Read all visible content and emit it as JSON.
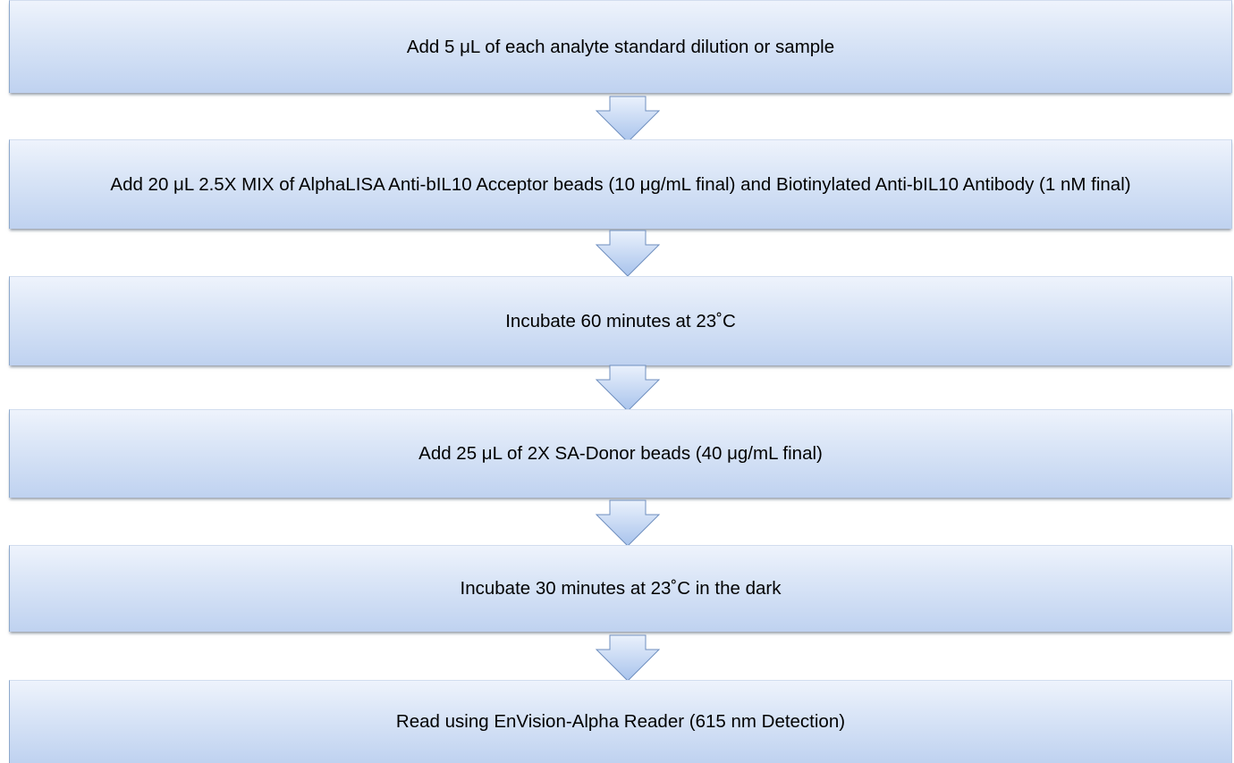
{
  "flowchart": {
    "steps": [
      "Add 5 μL of each analyte standard dilution or sample",
      "Add 20 μL 2.5X  MIX of AlphaLISA Anti-bIL10 Acceptor beads (10 μg/mL final) and Biotinylated Anti-bIL10 Antibody (1 nM final)",
      "Incubate 60 minutes at 23˚C",
      "Add 25 μL of 2X SA-Donor beads (40 μg/mL final)",
      "Incubate 30 minutes at 23˚C in the dark",
      "Read using EnVision-Alpha Reader (615 nm Detection)"
    ]
  },
  "colors": {
    "box_top": "#eef3fc",
    "box_bottom": "#bfd2f0",
    "box_border": "#8ea9cc",
    "arrow_top": "#eaf1fc",
    "arrow_bottom": "#a8c3ec",
    "arrow_stroke": "#6f8fbf"
  },
  "icons": {
    "connector": "down-arrow-icon"
  }
}
